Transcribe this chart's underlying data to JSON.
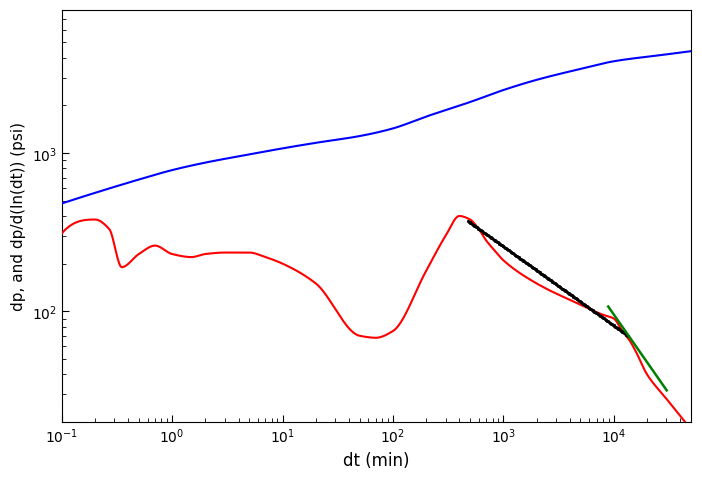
{
  "title": "",
  "xlabel": "dt (min)",
  "ylabel": "dp, and dp/d(ln(dt)) (psi)",
  "xlim": [
    0.1,
    50000
  ],
  "ylim": [
    20,
    8000
  ],
  "blue_color": "#0000ff",
  "red_color": "#ff0000",
  "green_color": "#008000",
  "black_color": "#000000",
  "dashed_slope": -0.5,
  "green_slope": -1.0,
  "blue_knots_x": [
    0.1,
    0.2,
    0.5,
    1,
    2,
    5,
    10,
    20,
    50,
    100,
    200,
    500,
    1000,
    2000,
    5000,
    10000,
    30000,
    50000
  ],
  "blue_knots_y": [
    480,
    560,
    680,
    780,
    870,
    980,
    1070,
    1160,
    1280,
    1430,
    1700,
    2100,
    2500,
    2900,
    3400,
    3800,
    4200,
    4400
  ],
  "red_knots_x": [
    0.1,
    0.2,
    0.27,
    0.35,
    0.5,
    0.7,
    1.0,
    1.5,
    2,
    3,
    5,
    7,
    10,
    20,
    50,
    70,
    100,
    200,
    300,
    400,
    500,
    600,
    700,
    800,
    1000,
    2000,
    5000,
    8000,
    10000,
    12000,
    14000,
    16000,
    20000,
    30000,
    50000
  ],
  "red_knots_y": [
    310,
    380,
    330,
    190,
    230,
    260,
    230,
    220,
    230,
    235,
    235,
    220,
    200,
    150,
    70,
    68,
    75,
    180,
    300,
    400,
    380,
    330,
    280,
    250,
    210,
    150,
    110,
    95,
    90,
    75,
    65,
    55,
    40,
    28,
    18
  ],
  "dash_ref_x_log": 2.7,
  "dash_ref_y_log": 2.56,
  "dash_x_start_log": 2.68,
  "dash_x_end_log": 4.13,
  "green_ref_x_log": 4.08,
  "green_ref_y_log": 1.9,
  "green_x_start_log": 3.95,
  "green_x_end_log": 4.48
}
